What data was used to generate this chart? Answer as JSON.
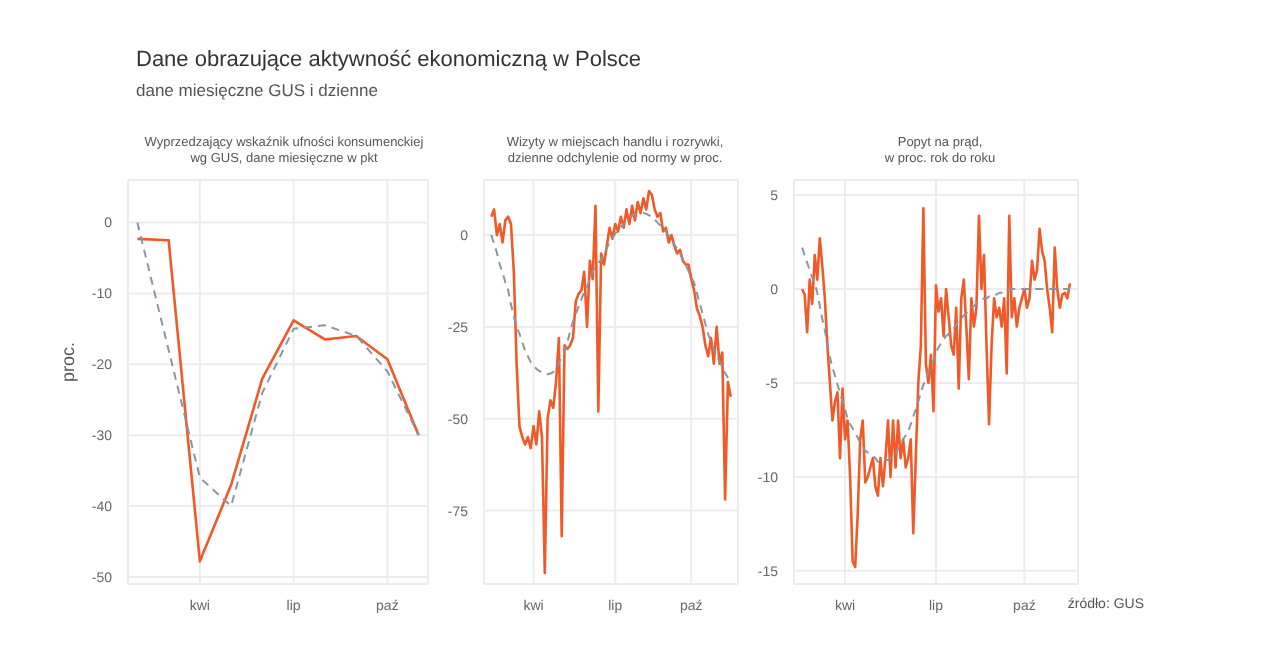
{
  "chart_data": [
    {
      "type": "line",
      "title": "Dane obrazujące aktywność ekonomiczną w Polsce",
      "subtitle": "dane miesięczne GUS i dzienne",
      "annotations": [
        "Wyprzedzający wskaźnik ufności konsumenckiej\nwg GUS, dane miesięczne w pkt"
      ],
      "ylabel": "proc.",
      "categories": [
        null,
        null,
        "kwi",
        null,
        null,
        "lip",
        null,
        null,
        "paź",
        null
      ],
      "ylim": [
        -51,
        6
      ],
      "yticks": [
        0,
        -10,
        -20,
        -30,
        -40,
        -50
      ],
      "grid": true,
      "series": [
        {
          "color": "#f05a28",
          "line_style": "solid",
          "values": [
            -2.3,
            -2.5,
            -47.8,
            -37,
            -22,
            -13.8,
            -16.5,
            -16,
            -19.3,
            -30
          ]
        },
        {
          "color": "#8a96a3",
          "line_style": "dashed",
          "values": [
            0,
            -18,
            -36,
            -40,
            -24,
            -15,
            -14.5,
            -16,
            -21,
            -30
          ]
        }
      ]
    },
    {
      "type": "line",
      "annotations": [
        "Wizyty w miejscach handlu i rozrywki,\ndzienne odchylenie od normy w proc."
      ],
      "categories": [
        null,
        null,
        null,
        null,
        null,
        null,
        null,
        null,
        null,
        null,
        null,
        null,
        null,
        null,
        null,
        "kwi",
        null,
        null,
        null,
        null,
        null,
        null,
        null,
        null,
        null,
        null,
        null,
        null,
        null,
        null,
        null,
        null,
        null,
        null,
        null,
        null,
        null,
        null,
        null,
        null,
        null,
        null,
        null,
        null,
        "lip",
        null,
        null,
        null,
        null,
        null,
        null,
        null,
        null,
        null,
        null,
        null,
        null,
        null,
        null,
        null,
        null,
        null,
        null,
        null,
        null,
        null,
        null,
        null,
        null,
        null,
        null,
        "paź",
        null,
        null,
        null,
        null,
        null,
        null,
        null,
        null,
        null,
        null,
        null,
        null,
        null,
        null
      ],
      "ylim": [
        -95,
        15
      ],
      "yticks": [
        0,
        -25,
        -50,
        -75
      ],
      "grid": true,
      "series": [
        {
          "color": "#f05a28",
          "line_style": "solid",
          "values": [
            5,
            7,
            0,
            3,
            -2,
            4,
            5,
            3,
            -10,
            -35,
            -52,
            -55,
            -57,
            -55,
            -58,
            -52,
            -57,
            -48,
            -55,
            -92,
            -50,
            -45,
            -47,
            -40,
            -28,
            -82,
            -30,
            -31,
            -30,
            -28,
            -18,
            -16,
            -15,
            -10,
            -25,
            -7,
            -12,
            8,
            -48,
            -5,
            -8,
            -3,
            2,
            -1,
            3,
            1,
            5,
            2,
            7,
            3,
            8,
            4,
            9,
            6,
            10,
            7,
            12,
            11,
            7,
            5,
            6,
            1,
            2,
            -2,
            0,
            -3,
            -5,
            -4,
            -7,
            -8,
            -8,
            -12,
            -15,
            -20,
            -22,
            -25,
            -30,
            -33,
            -28,
            -35,
            -25,
            -35,
            -32,
            -72,
            -40,
            -44
          ]
        },
        {
          "color": "#8a96a3",
          "line_style": "dashed",
          "values": [
            0,
            -2.4,
            -4.8,
            -8,
            -10.1,
            -12.9,
            -15,
            -19,
            -22,
            -25,
            -26.8,
            -29.2,
            -31.4,
            -33,
            -34.6,
            -35.6,
            -36.4,
            -37,
            -37.3,
            -37.6,
            -37.9,
            -37.7,
            -37.3,
            -36.4,
            -34.6,
            -33.4,
            -31.6,
            -29.2,
            -26.2,
            -23.5,
            -21.5,
            -19.5,
            -17.5,
            -15.5,
            -14,
            -12,
            -10,
            -8.4,
            -7.6,
            -6.8,
            -5.2,
            -3.6,
            -2,
            -0.8,
            0.4,
            1.4,
            2.2,
            3,
            3.8,
            4.6,
            5.2,
            5.6,
            6,
            6,
            6,
            5.8,
            5.4,
            5,
            4.2,
            3.4,
            2.6,
            1.8,
            1,
            -0.2,
            -1.4,
            -2.6,
            -3.8,
            -5,
            -6.6,
            -8.2,
            -9.8,
            -11.4,
            -13,
            -15.8,
            -18.6,
            -21.4,
            -24.2,
            -27,
            -29,
            -31,
            -32.8,
            -34.4,
            -36,
            -37.6,
            -38.8,
            -40
          ]
        }
      ]
    },
    {
      "type": "line",
      "annotations": [
        "Popyt na prąd,\nw proc. rok do roku",
        "źródło: GUS"
      ],
      "categories": [
        null,
        null,
        null,
        null,
        null,
        null,
        null,
        null,
        null,
        null,
        null,
        null,
        null,
        null,
        null,
        null,
        null,
        "kwi",
        null,
        null,
        null,
        null,
        null,
        null,
        null,
        null,
        null,
        null,
        null,
        null,
        null,
        null,
        null,
        null,
        null,
        null,
        null,
        null,
        null,
        null,
        null,
        null,
        null,
        null,
        null,
        null,
        null,
        null,
        null,
        null,
        null,
        null,
        null,
        "lip",
        null,
        null,
        null,
        null,
        null,
        null,
        null,
        null,
        null,
        null,
        null,
        null,
        null,
        null,
        null,
        null,
        null,
        null,
        null,
        null,
        null,
        null,
        null,
        null,
        null,
        null,
        null,
        null,
        null,
        null,
        null,
        null,
        null,
        null,
        "paź",
        null,
        null,
        null,
        null,
        null,
        null,
        null,
        null,
        null,
        null,
        null,
        null,
        null,
        null,
        null,
        null,
        null,
        null
      ],
      "ylim": [
        -15.7,
        5.8
      ],
      "yticks": [
        5,
        0,
        -5,
        -10,
        -15
      ],
      "grid": true,
      "series": [
        {
          "color": "#f05a28",
          "line_style": "solid",
          "values": [
            0,
            -0.3,
            -2.3,
            0.5,
            -0.8,
            1.8,
            0.5,
            2.7,
            1.2,
            -0.5,
            -3,
            -5,
            -7,
            -6,
            -5.5,
            -9,
            -5.3,
            -8,
            -7,
            -10,
            -14.5,
            -14.8,
            -12,
            -8,
            -7,
            -10.3,
            -10,
            -9.5,
            -9,
            -10.5,
            -11,
            -9,
            -10.5,
            -9,
            -7,
            -10,
            -7,
            -9.5,
            -7,
            -9,
            -8,
            -9.5,
            -9,
            -8,
            -13,
            -9,
            -5,
            -3,
            4.3,
            -4,
            -5,
            -3.5,
            -6.5,
            0.2,
            -1.2,
            -0.5,
            -2.5,
            0,
            -1.5,
            -3,
            -3.5,
            -1,
            -5.3,
            -0.5,
            0.5,
            -2,
            -4.8,
            -0.5,
            -2,
            -1,
            3.9,
            0,
            1.8,
            -3,
            -7.2,
            -3,
            -0.5,
            -1.5,
            -1,
            -2,
            -0.5,
            -4.5,
            3.9,
            -1.5,
            -0.5,
            -2,
            -1,
            -0.5,
            0,
            -1,
            -0.5,
            1.5,
            0.5,
            1,
            3.2,
            2,
            1.5,
            0,
            -1,
            -2.3,
            2.2,
            0,
            -1,
            -0.3,
            -0.2,
            -0.5,
            0.3
          ]
        },
        {
          "color": "#8a96a3",
          "line_style": "dashed",
          "values": [
            2.2,
            1.8,
            1.4,
            1.0,
            0.6,
            0.3,
            -0.2,
            -0.9,
            -1.6,
            -2.2,
            -2.9,
            -3.6,
            -4.2,
            -4.6,
            -5.1,
            -5.5,
            -6.0,
            -6.4,
            -6.9,
            -7.2,
            -7.4,
            -7.7,
            -7.9,
            -8.2,
            -8.4,
            -8.6,
            -8.7,
            -8.8,
            -8.9,
            -9.0,
            -9.2,
            -9.2,
            -9.1,
            -9.1,
            -9.1,
            -9.0,
            -9.0,
            -8.8,
            -8.5,
            -8.3,
            -8.0,
            -7.8,
            -7.6,
            -7.2,
            -6.8,
            -6.4,
            -6.0,
            -5.5,
            -5.1,
            -4.8,
            -4.4,
            -4.1,
            -3.8,
            -3.4,
            -3.1,
            -2.9,
            -2.7,
            -2.5,
            -2.4,
            -2.2,
            -2.1,
            -1.9,
            -1.7,
            -1.6,
            -1.4,
            -1.3,
            -1.1,
            -1.0,
            -0.9,
            -0.8,
            -0.7,
            -0.6,
            -0.5,
            -0.5,
            -0.4,
            -0.4,
            -0.3,
            -0.3,
            -0.2,
            -0.2,
            -0.1,
            -0.1,
            -0.1,
            0,
            0,
            0,
            0,
            0,
            0,
            0,
            0,
            0,
            0,
            0,
            0,
            0,
            0,
            0,
            0,
            0,
            0,
            0,
            0,
            0,
            0,
            0,
            0
          ]
        }
      ]
    }
  ]
}
